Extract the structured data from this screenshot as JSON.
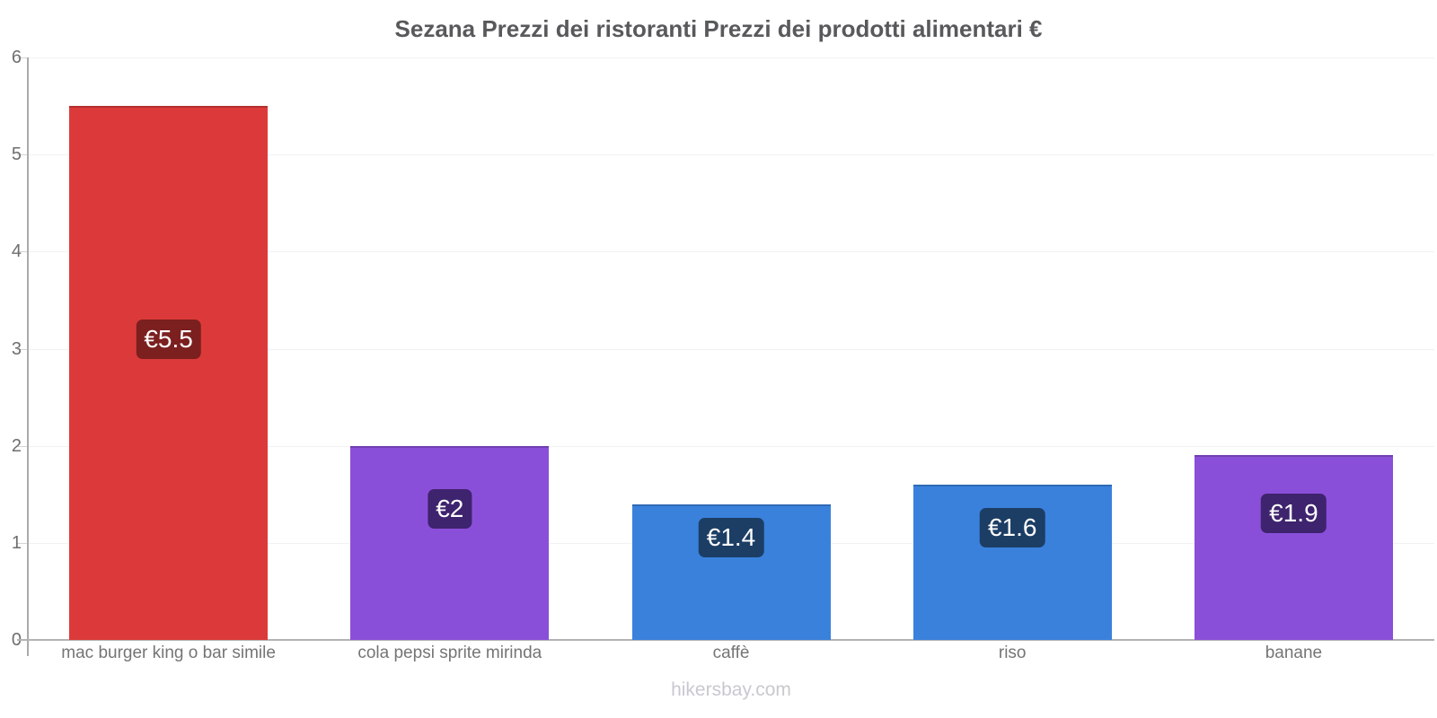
{
  "chart_data": {
    "type": "bar",
    "title": "Sezana Prezzi dei ristoranti Prezzi dei prodotti alimentari €",
    "categories": [
      "mac burger king o bar simile",
      "cola pepsi sprite mirinda",
      "caffè",
      "riso",
      "banane"
    ],
    "values": [
      5.5,
      2,
      1.4,
      1.6,
      1.9
    ],
    "value_labels": [
      "€5.5",
      "€2",
      "€1.4",
      "€1.6",
      "€1.9"
    ],
    "bar_colors": [
      "#dc3a3a",
      "#8a4fd8",
      "#3a81dc",
      "#3a81dc",
      "#8a4fd8"
    ],
    "badge_colors": [
      "#7b1f1f",
      "#3e236e",
      "#1c3e65",
      "#1c3e65",
      "#3e236e"
    ],
    "xlabel": "",
    "ylabel": "",
    "ylim": [
      0,
      6
    ],
    "yticks": [
      0,
      1,
      2,
      3,
      4,
      5,
      6
    ],
    "grid": "horizontal-faint",
    "legend": "none",
    "currency": "€"
  },
  "footer": {
    "text": "hikersbay.com"
  },
  "colors": {
    "title": "#58595b",
    "axis_line": "#ababab",
    "x_axis_line": "#b3b3b3",
    "grid_line": "#f2f2f5",
    "tick_stub": "#d4d4d8",
    "tick_label": "#6e6e6e",
    "category_label": "#757575",
    "footer_text": "#c8c8d0",
    "badge_text": "#ffffff",
    "background": "#ffffff"
  }
}
